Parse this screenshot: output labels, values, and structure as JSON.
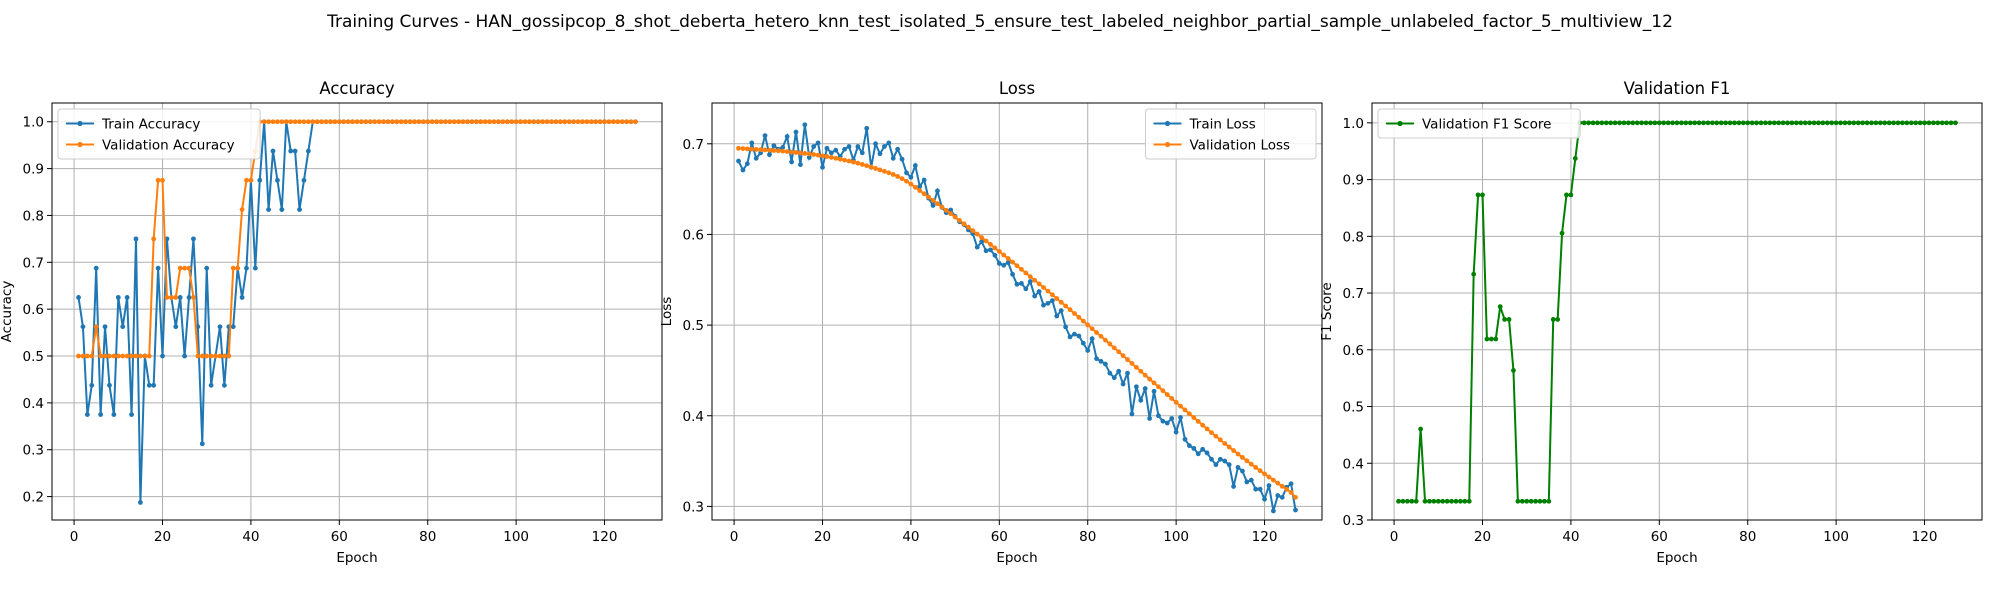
{
  "figure": {
    "suptitle": "Training Curves - HAN_gossipcop_8_shot_deberta_hetero_knn_test_isolated_5_ensure_test_labeled_neighbor_partial_sample_unlabeled_factor_5_multiview_12"
  },
  "colors": {
    "train": "#1f77b4",
    "validation": "#ff7f0e",
    "f1": "#008000"
  },
  "chart_data": [
    {
      "type": "line",
      "title": "Accuracy",
      "xlabel": "Epoch",
      "ylabel": "Accuracy",
      "xlim": [
        -5,
        133
      ],
      "ylim": [
        0.15,
        1.04
      ],
      "xticks": [
        0,
        20,
        40,
        60,
        80,
        100,
        120
      ],
      "yticks": [
        0.2,
        0.3,
        0.4,
        0.5,
        0.6,
        0.7,
        0.8,
        0.9,
        1.0
      ],
      "ytick_decimals": 1,
      "grid": true,
      "legend": "top-left",
      "x_start": 1,
      "series": [
        {
          "name": "Train Accuracy",
          "color": "#1f77b4",
          "values": [
            0.625,
            0.5625,
            0.375,
            0.4375,
            0.6875,
            0.375,
            0.5625,
            0.4375,
            0.375,
            0.625,
            0.5625,
            0.625,
            0.375,
            0.75,
            0.1875,
            0.5,
            0.4375,
            0.4375,
            0.6875,
            0.5,
            0.75,
            0.625,
            0.5625,
            0.625,
            0.5,
            0.625,
            0.75,
            0.5625,
            0.3125,
            0.6875,
            0.4375,
            0.5,
            0.5625,
            0.4375,
            0.5625,
            0.5625,
            0.6875,
            0.625,
            0.6875,
            0.875,
            0.6875,
            0.875,
            1.0,
            0.8125,
            0.9375,
            0.875,
            0.8125,
            1.0,
            0.9375,
            0.9375,
            0.8125,
            0.875,
            0.9375,
            1.0,
            1.0,
            1.0,
            1.0,
            1.0,
            1.0,
            1.0,
            1.0,
            1.0,
            1.0,
            1.0,
            1.0,
            1.0,
            1.0,
            1.0,
            1.0,
            1.0,
            1.0,
            1.0,
            1.0,
            1.0,
            1.0,
            1.0,
            1.0,
            1.0,
            1.0,
            1.0,
            1.0,
            1.0,
            1.0,
            1.0,
            1.0,
            1.0,
            1.0,
            1.0,
            1.0,
            1.0,
            1.0,
            1.0,
            1.0,
            1.0,
            1.0,
            1.0,
            1.0,
            1.0,
            1.0,
            1.0,
            1.0,
            1.0,
            1.0,
            1.0,
            1.0,
            1.0,
            1.0,
            1.0,
            1.0,
            1.0,
            1.0,
            1.0,
            1.0,
            1.0,
            1.0,
            1.0,
            1.0,
            1.0,
            1.0,
            1.0,
            1.0,
            1.0,
            1.0,
            1.0,
            1.0,
            1.0,
            1.0
          ]
        },
        {
          "name": "Validation Accuracy",
          "color": "#ff7f0e",
          "values": [
            0.5,
            0.5,
            0.5,
            0.5,
            0.5625,
            0.5,
            0.5,
            0.5,
            0.5,
            0.5,
            0.5,
            0.5,
            0.5,
            0.5,
            0.5,
            0.5,
            0.5,
            0.75,
            0.875,
            0.875,
            0.625,
            0.625,
            0.625,
            0.6875,
            0.6875,
            0.6875,
            0.625,
            0.5,
            0.5,
            0.5,
            0.5,
            0.5,
            0.5,
            0.5,
            0.5,
            0.6875,
            0.6875,
            0.8125,
            0.875,
            0.875,
            0.9375,
            1.0,
            1.0,
            1.0,
            1.0,
            1.0,
            1.0,
            1.0,
            1.0,
            1.0,
            1.0,
            1.0,
            1.0,
            1.0,
            1.0,
            1.0,
            1.0,
            1.0,
            1.0,
            1.0,
            1.0,
            1.0,
            1.0,
            1.0,
            1.0,
            1.0,
            1.0,
            1.0,
            1.0,
            1.0,
            1.0,
            1.0,
            1.0,
            1.0,
            1.0,
            1.0,
            1.0,
            1.0,
            1.0,
            1.0,
            1.0,
            1.0,
            1.0,
            1.0,
            1.0,
            1.0,
            1.0,
            1.0,
            1.0,
            1.0,
            1.0,
            1.0,
            1.0,
            1.0,
            1.0,
            1.0,
            1.0,
            1.0,
            1.0,
            1.0,
            1.0,
            1.0,
            1.0,
            1.0,
            1.0,
            1.0,
            1.0,
            1.0,
            1.0,
            1.0,
            1.0,
            1.0,
            1.0,
            1.0,
            1.0,
            1.0,
            1.0,
            1.0,
            1.0,
            1.0,
            1.0,
            1.0,
            1.0,
            1.0,
            1.0,
            1.0,
            1.0
          ]
        }
      ]
    },
    {
      "type": "line",
      "title": "Loss",
      "xlabel": "Epoch",
      "ylabel": "Loss",
      "xlim": [
        -5,
        133
      ],
      "ylim": [
        0.285,
        0.745
      ],
      "xticks": [
        0,
        20,
        40,
        60,
        80,
        100,
        120
      ],
      "yticks": [
        0.3,
        0.4,
        0.5,
        0.6,
        0.7
      ],
      "ytick_decimals": 1,
      "grid": true,
      "legend": "top-right",
      "x_start": 1,
      "series": [
        {
          "name": "Train Loss",
          "color": "#1f77b4",
          "values": [
            0.681,
            0.671,
            0.678,
            0.701,
            0.684,
            0.69,
            0.709,
            0.688,
            0.698,
            0.694,
            0.696,
            0.708,
            0.68,
            0.713,
            0.677,
            0.721,
            0.685,
            0.697,
            0.701,
            0.674,
            0.695,
            0.69,
            0.693,
            0.686,
            0.694,
            0.697,
            0.682,
            0.697,
            0.69,
            0.717,
            0.674,
            0.7,
            0.689,
            0.697,
            0.701,
            0.684,
            0.694,
            0.683,
            0.668,
            0.663,
            0.676,
            0.653,
            0.66,
            0.64,
            0.632,
            0.648,
            0.63,
            0.624,
            0.627,
            0.62,
            0.614,
            0.611,
            0.605,
            0.601,
            0.586,
            0.592,
            0.582,
            0.583,
            0.577,
            0.568,
            0.566,
            0.569,
            0.556,
            0.545,
            0.546,
            0.54,
            0.548,
            0.532,
            0.537,
            0.522,
            0.524,
            0.527,
            0.51,
            0.516,
            0.498,
            0.487,
            0.49,
            0.488,
            0.48,
            0.472,
            0.485,
            0.463,
            0.46,
            0.457,
            0.447,
            0.442,
            0.449,
            0.435,
            0.447,
            0.402,
            0.432,
            0.417,
            0.43,
            0.397,
            0.427,
            0.4,
            0.394,
            0.392,
            0.397,
            0.382,
            0.398,
            0.374,
            0.367,
            0.364,
            0.358,
            0.363,
            0.359,
            0.352,
            0.346,
            0.352,
            0.35,
            0.346,
            0.322,
            0.343,
            0.339,
            0.327,
            0.329,
            0.319,
            0.319,
            0.308,
            0.323,
            0.295,
            0.312,
            0.31,
            0.321,
            0.325,
            0.296
          ]
        },
        {
          "name": "Validation Loss",
          "color": "#ff7f0e",
          "values": [
            0.695,
            0.6947,
            0.6944,
            0.6941,
            0.6938,
            0.6935,
            0.6932,
            0.6929,
            0.6926,
            0.6923,
            0.6919,
            0.6914,
            0.6909,
            0.6904,
            0.6899,
            0.6894,
            0.6888,
            0.6882,
            0.6875,
            0.6867,
            0.6859,
            0.685,
            0.684,
            0.683,
            0.682,
            0.681,
            0.6798,
            0.6786,
            0.6772,
            0.6758,
            0.6744,
            0.6728,
            0.6712,
            0.6696,
            0.668,
            0.6662,
            0.664,
            0.6615,
            0.6587,
            0.6555,
            0.652,
            0.6484,
            0.6448,
            0.6412,
            0.6376,
            0.634,
            0.6303,
            0.6266,
            0.6229,
            0.6192,
            0.6155,
            0.6118,
            0.608,
            0.6042,
            0.6004,
            0.5966,
            0.5928,
            0.589,
            0.5851,
            0.5812,
            0.5773,
            0.5734,
            0.5695,
            0.5655,
            0.5615,
            0.5575,
            0.5535,
            0.5495,
            0.5455,
            0.5415,
            0.5375,
            0.5334,
            0.5293,
            0.5252,
            0.5211,
            0.517,
            0.5128,
            0.5086,
            0.5044,
            0.5002,
            0.496,
            0.4918,
            0.4876,
            0.4834,
            0.4792,
            0.4749,
            0.4706,
            0.4663,
            0.462,
            0.4577,
            0.4534,
            0.4491,
            0.4448,
            0.4405,
            0.4362,
            0.432,
            0.4277,
            0.4234,
            0.4191,
            0.4148,
            0.4106,
            0.4064,
            0.4022,
            0.398,
            0.3938,
            0.3896,
            0.3855,
            0.3814,
            0.3774,
            0.3734,
            0.3694,
            0.3655,
            0.3616,
            0.3578,
            0.354,
            0.3503,
            0.3466,
            0.343,
            0.3394,
            0.3359,
            0.3324,
            0.329,
            0.3256,
            0.3222,
            0.3188,
            0.3154,
            0.31
          ]
        }
      ]
    },
    {
      "type": "line",
      "title": "Validation F1",
      "xlabel": "Epoch",
      "ylabel": "F1 Score",
      "xlim": [
        -5,
        133
      ],
      "ylim": [
        0.3,
        1.035
      ],
      "xticks": [
        0,
        20,
        40,
        60,
        80,
        100,
        120
      ],
      "yticks": [
        0.3,
        0.4,
        0.5,
        0.6,
        0.7,
        0.8,
        0.9,
        1.0
      ],
      "ytick_decimals": 1,
      "grid": true,
      "legend": "top-left",
      "x_start": 1,
      "series": [
        {
          "name": "Validation F1 Score",
          "color": "#008000",
          "values": [
            0.333,
            0.333,
            0.333,
            0.333,
            0.333,
            0.4603,
            0.333,
            0.333,
            0.333,
            0.333,
            0.333,
            0.333,
            0.333,
            0.333,
            0.333,
            0.333,
            0.333,
            0.7333,
            0.873,
            0.873,
            0.619,
            0.619,
            0.619,
            0.6761,
            0.6536,
            0.6536,
            0.5636,
            0.333,
            0.333,
            0.333,
            0.333,
            0.333,
            0.333,
            0.333,
            0.333,
            0.6536,
            0.6536,
            0.8056,
            0.873,
            0.873,
            0.9373,
            1.0,
            1.0,
            1.0,
            1.0,
            1.0,
            1.0,
            1.0,
            1.0,
            1.0,
            1.0,
            1.0,
            1.0,
            1.0,
            1.0,
            1.0,
            1.0,
            1.0,
            1.0,
            1.0,
            1.0,
            1.0,
            1.0,
            1.0,
            1.0,
            1.0,
            1.0,
            1.0,
            1.0,
            1.0,
            1.0,
            1.0,
            1.0,
            1.0,
            1.0,
            1.0,
            1.0,
            1.0,
            1.0,
            1.0,
            1.0,
            1.0,
            1.0,
            1.0,
            1.0,
            1.0,
            1.0,
            1.0,
            1.0,
            1.0,
            1.0,
            1.0,
            1.0,
            1.0,
            1.0,
            1.0,
            1.0,
            1.0,
            1.0,
            1.0,
            1.0,
            1.0,
            1.0,
            1.0,
            1.0,
            1.0,
            1.0,
            1.0,
            1.0,
            1.0,
            1.0,
            1.0,
            1.0,
            1.0,
            1.0,
            1.0,
            1.0,
            1.0,
            1.0,
            1.0,
            1.0,
            1.0,
            1.0,
            1.0,
            1.0,
            1.0,
            1.0
          ]
        }
      ]
    }
  ]
}
